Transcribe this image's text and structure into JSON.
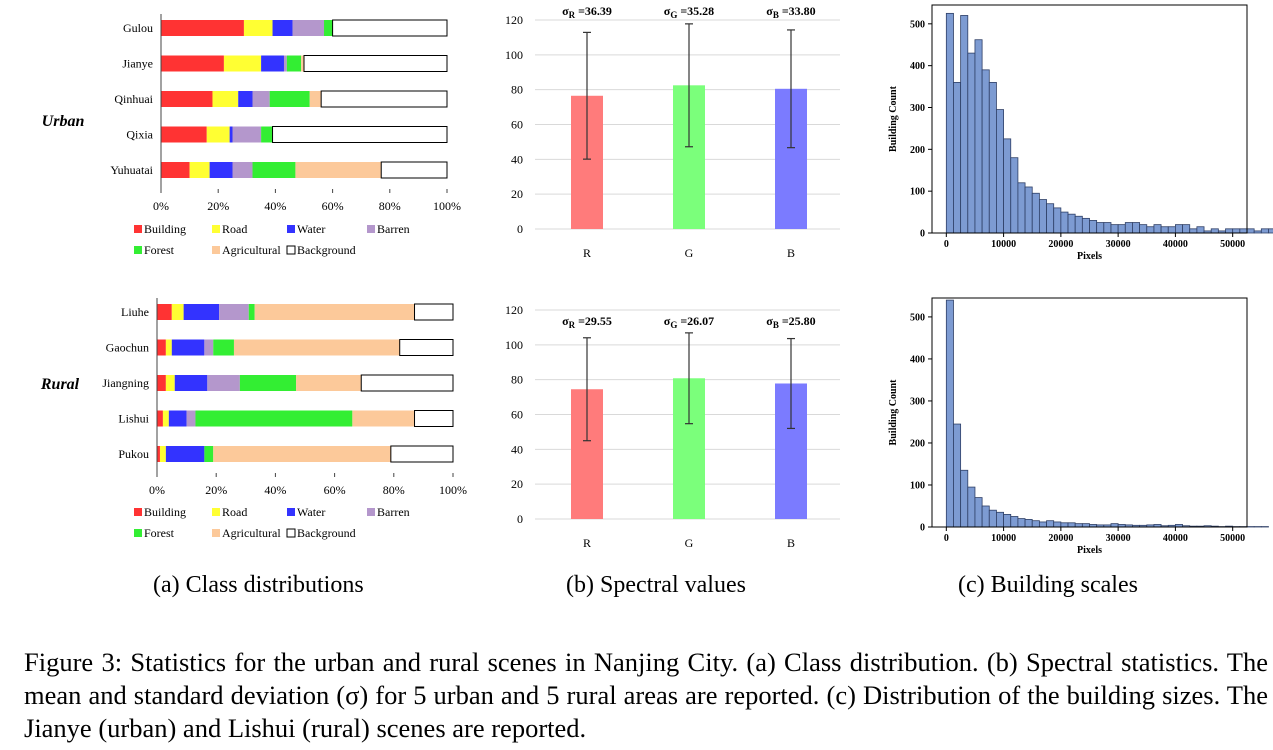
{
  "legend": {
    "items": [
      {
        "label": "Building",
        "color": "#ff3333",
        "box": false
      },
      {
        "label": "Road",
        "color": "#ffff33",
        "box": false
      },
      {
        "label": "Water",
        "color": "#3333ff",
        "box": false
      },
      {
        "label": "Barren",
        "color": "#b497cc",
        "box": false
      },
      {
        "label": "Forest",
        "color": "#33ee33",
        "box": false
      },
      {
        "label": "Agricultural",
        "color": "#fcc99a",
        "box": false
      },
      {
        "label": "Background",
        "color": "#ffffff",
        "box": true
      }
    ]
  },
  "captions": {
    "a": "(a) Class distributions",
    "b": "(b) Spectral values",
    "c": "(c) Building scales"
  },
  "figure_caption": {
    "label": "Figure 3:",
    "text": "Statistics for the urban and rural scenes in Nanjing City. (a) Class distribution. (b) Spectral statistics. The mean and standard deviation (σ) for 5 urban and 5 rural areas are reported. (c) Distribution of the building sizes. The Jianye (urban) and Lishui (rural) scenes are reported."
  },
  "chart_data": [
    {
      "id": "class-urban",
      "type": "bar",
      "orientation": "horizontal",
      "stacked": true,
      "group_label": "Urban",
      "categories": [
        "Gulou",
        "Jianye",
        "Qinhuai",
        "Qixia",
        "Yuhuatai"
      ],
      "series": [
        {
          "name": "Building",
          "values": [
            29,
            22,
            18,
            16,
            10
          ]
        },
        {
          "name": "Road",
          "values": [
            10,
            13,
            9,
            8,
            7
          ]
        },
        {
          "name": "Water",
          "values": [
            7,
            8,
            5,
            1,
            8
          ]
        },
        {
          "name": "Barren",
          "values": [
            11,
            1,
            6,
            10,
            7
          ]
        },
        {
          "name": "Forest",
          "values": [
            3,
            5,
            14,
            4,
            15
          ]
        },
        {
          "name": "Agricultural",
          "values": [
            0,
            1,
            4,
            0,
            30
          ]
        },
        {
          "name": "Background",
          "values": [
            40,
            50,
            44,
            61,
            23
          ]
        }
      ],
      "xticks": [
        "0%",
        "20%",
        "40%",
        "60%",
        "80%",
        "100%"
      ],
      "xlim": [
        0,
        100
      ]
    },
    {
      "id": "class-rural",
      "type": "bar",
      "orientation": "horizontal",
      "stacked": true,
      "group_label": "Rural",
      "categories": [
        "Liuhe",
        "Gaochun",
        "Jiangning",
        "Lishui",
        "Pukou"
      ],
      "series": [
        {
          "name": "Building",
          "values": [
            5,
            3,
            3,
            2,
            1
          ]
        },
        {
          "name": "Road",
          "values": [
            4,
            2,
            3,
            2,
            2
          ]
        },
        {
          "name": "Water",
          "values": [
            12,
            11,
            11,
            6,
            13
          ]
        },
        {
          "name": "Barren",
          "values": [
            10,
            3,
            11,
            3,
            0
          ]
        },
        {
          "name": "Forest",
          "values": [
            2,
            7,
            19,
            53,
            3
          ]
        },
        {
          "name": "Agricultural",
          "values": [
            54,
            56,
            22,
            21,
            60
          ]
        },
        {
          "name": "Background",
          "values": [
            13,
            18,
            31,
            13,
            21
          ]
        }
      ],
      "xticks": [
        "0%",
        "20%",
        "40%",
        "60%",
        "80%",
        "100%"
      ],
      "xlim": [
        0,
        100
      ]
    },
    {
      "id": "spectral-urban",
      "type": "bar",
      "categories": [
        "R",
        "G",
        "B"
      ],
      "values": [
        76.5,
        82.5,
        80.5
      ],
      "errors": [
        36.39,
        35.28,
        33.8
      ],
      "colors": [
        "#ff7b7b",
        "#7bff7b",
        "#7b7bff"
      ],
      "annotations": [
        "36.39",
        "35.28",
        "33.80"
      ],
      "yticks": [
        "0",
        "20",
        "40",
        "60",
        "80",
        "100",
        "120"
      ],
      "ylim": [
        0,
        120
      ]
    },
    {
      "id": "spectral-rural",
      "type": "bar",
      "categories": [
        "R",
        "G",
        "B"
      ],
      "values": [
        74.5,
        80.8,
        77.8
      ],
      "errors": [
        29.55,
        26.07,
        25.8
      ],
      "colors": [
        "#ff7b7b",
        "#7bff7b",
        "#7b7bff"
      ],
      "annotations": [
        "29.55",
        "26.07",
        "25.80"
      ],
      "yticks": [
        "0",
        "20",
        "40",
        "60",
        "80",
        "100",
        "120"
      ],
      "ylim": [
        0,
        120
      ]
    },
    {
      "id": "scale-urban",
      "type": "bar",
      "subtype": "histogram",
      "xlabel": "Pixels",
      "ylabel": "Building Count",
      "bin_width": 1250,
      "bin_start": 0,
      "counts": [
        525,
        360,
        520,
        430,
        462,
        390,
        360,
        295,
        225,
        180,
        120,
        110,
        95,
        80,
        70,
        60,
        50,
        45,
        40,
        35,
        30,
        25,
        25,
        20,
        20,
        25,
        25,
        20,
        15,
        20,
        15,
        15,
        20,
        20,
        10,
        15,
        5,
        10,
        5,
        10,
        10,
        10,
        10,
        5,
        10,
        10,
        5,
        10,
        15,
        5
      ],
      "xticks": [
        "0",
        "10000",
        "20000",
        "30000",
        "40000",
        "50000"
      ],
      "yticks": [
        "0",
        "100",
        "200",
        "300",
        "400",
        "500"
      ],
      "xlim": [
        -2500,
        52500
      ],
      "ylim": [
        0,
        545
      ]
    },
    {
      "id": "scale-rural",
      "type": "bar",
      "subtype": "histogram",
      "xlabel": "Pixels",
      "ylabel": "Building Count",
      "bin_width": 1250,
      "bin_start": 0,
      "counts": [
        540,
        245,
        135,
        95,
        70,
        50,
        40,
        35,
        30,
        25,
        20,
        18,
        15,
        12,
        15,
        12,
        10,
        10,
        8,
        8,
        6,
        5,
        5,
        8,
        6,
        5,
        4,
        4,
        5,
        6,
        3,
        4,
        6,
        3,
        2,
        2,
        3,
        2,
        1,
        2,
        1,
        1,
        1,
        1,
        1,
        0,
        1,
        1,
        1,
        2
      ],
      "xticks": [
        "0",
        "10000",
        "20000",
        "30000",
        "40000",
        "50000"
      ],
      "yticks": [
        "0",
        "100",
        "200",
        "300",
        "400",
        "500"
      ],
      "xlim": [
        -2500,
        52500
      ],
      "ylim": [
        0,
        545
      ]
    }
  ]
}
